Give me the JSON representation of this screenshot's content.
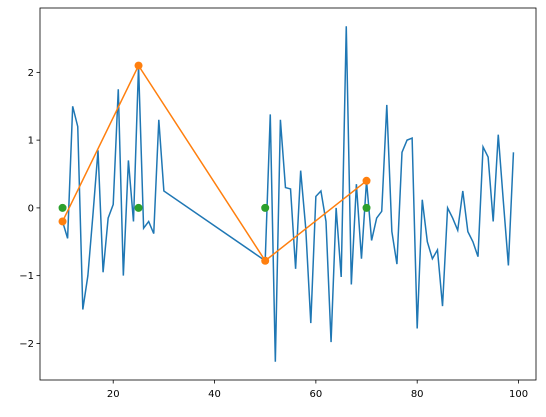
{
  "chart_data": {
    "type": "line",
    "xlim": [
      5.55,
      103.45
    ],
    "ylim": [
      -2.54,
      2.95
    ],
    "xticks": [
      20,
      40,
      60,
      80,
      100
    ],
    "yticks": [
      {
        "value": -2,
        "label": "−2"
      },
      {
        "value": -1,
        "label": "−1"
      },
      0,
      1,
      2
    ],
    "series": [
      {
        "color": "#1f77b4",
        "marker": false,
        "x": [
          10,
          11,
          12,
          13,
          14,
          15,
          16,
          17,
          18,
          19,
          20,
          21,
          22,
          23,
          24,
          25,
          26,
          27,
          28,
          29,
          30,
          50,
          51,
          52,
          53,
          54,
          55,
          56,
          57,
          58,
          59,
          60,
          61,
          62,
          63,
          64,
          65,
          66,
          67,
          68,
          69,
          70,
          71,
          72,
          73,
          74,
          75,
          76,
          77,
          78,
          79,
          80,
          81,
          82,
          83,
          84,
          85,
          86,
          87,
          88,
          89,
          90,
          91,
          92,
          93,
          94,
          95,
          96,
          97,
          98,
          99
        ],
        "values": [
          -0.2,
          -0.45,
          1.5,
          1.2,
          -1.5,
          -1.0,
          -0.1,
          0.85,
          -0.95,
          -0.15,
          0.05,
          1.75,
          -1.0,
          0.7,
          -0.2,
          2.1,
          -0.3,
          -0.2,
          -0.38,
          1.3,
          0.25,
          -0.78,
          1.38,
          -2.27,
          1.3,
          0.3,
          0.28,
          -0.9,
          0.55,
          -0.3,
          -1.7,
          0.17,
          0.25,
          -0.2,
          -1.98,
          0.0,
          -1.02,
          2.68,
          -1.13,
          0.35,
          -0.75,
          0.4,
          -0.48,
          -0.15,
          -0.05,
          1.52,
          -0.35,
          -0.83,
          0.82,
          1.0,
          1.03,
          -1.78,
          0.12,
          -0.5,
          -0.75,
          -0.62,
          -1.45,
          0.0,
          -0.15,
          -0.33,
          0.25,
          -0.35,
          -0.5,
          -0.72,
          0.9,
          0.75,
          -0.2,
          1.08,
          0.1,
          -0.85,
          0.82
        ]
      },
      {
        "color": "#ff7f0e",
        "marker": true,
        "x": [
          10,
          25,
          50,
          70
        ],
        "values": [
          -0.2,
          2.1,
          -0.78,
          0.4
        ]
      },
      {
        "color": "#2ca02c",
        "marker": true,
        "line": false,
        "x": [
          10,
          25,
          50,
          70
        ],
        "values": [
          0,
          0,
          0,
          0
        ]
      }
    ]
  }
}
